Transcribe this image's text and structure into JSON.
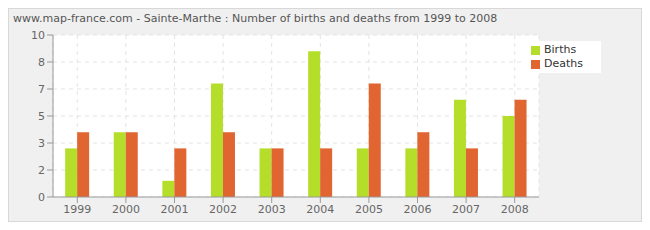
{
  "chart_data": {
    "type": "bar",
    "title": "www.map-france.com - Sainte-Marthe : Number of births and deaths from 1999 to 2008",
    "categories": [
      "1999",
      "2000",
      "2001",
      "2002",
      "2003",
      "2004",
      "2005",
      "2006",
      "2007",
      "2008"
    ],
    "series": [
      {
        "name": "Births",
        "color": "#b5de2b",
        "values": [
          3,
          4,
          1,
          7,
          3,
          9,
          3,
          3,
          6,
          5
        ]
      },
      {
        "name": "Deaths",
        "color": "#e06530",
        "values": [
          4,
          4,
          3,
          4,
          3,
          3,
          7,
          4,
          3,
          6
        ]
      }
    ],
    "ylim": [
      0,
      10
    ],
    "yticks": [
      {
        "value": 0,
        "label": "0"
      },
      {
        "value": 1.667,
        "label": "2"
      },
      {
        "value": 3.333,
        "label": "3"
      },
      {
        "value": 5,
        "label": "5"
      },
      {
        "value": 6.667,
        "label": "7"
      },
      {
        "value": 8.333,
        "label": "8"
      },
      {
        "value": 10,
        "label": "10"
      }
    ],
    "grid": true,
    "legend": "upper right"
  }
}
